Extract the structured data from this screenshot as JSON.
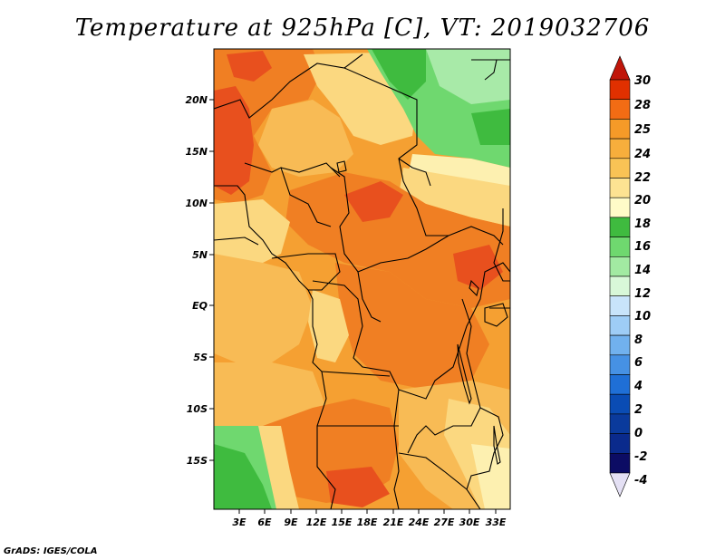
{
  "title": "Temperature at 925hPa [C], VT: 2019032706",
  "footer": "GrADS: IGES/COLA",
  "map": {
    "lat_ticks": [
      "20N",
      "15N",
      "10N",
      "5N",
      "EQ",
      "5S",
      "10S",
      "15S"
    ],
    "lon_ticks": [
      "3E",
      "6E",
      "9E",
      "12E",
      "15E",
      "18E",
      "21E",
      "24E",
      "27E",
      "30E",
      "33E"
    ]
  },
  "colorbar": {
    "labels": [
      "30",
      "28",
      "25",
      "24",
      "22",
      "20",
      "18",
      "16",
      "14",
      "12",
      "10",
      "8",
      "6",
      "4",
      "2",
      "0",
      "-2",
      "-4"
    ],
    "colors": [
      "#a50000",
      "#e03000",
      "#f26c14",
      "#f59a28",
      "#f9c355",
      "#fde392",
      "#fffbc8",
      "#3fbb3f",
      "#6fd86f",
      "#a2eaa2",
      "#d8f8d8",
      "#c8e4fa",
      "#9ecdf6",
      "#71b1ee",
      "#4691e4",
      "#1f6fd6",
      "#0a4cb4",
      "#0a2a8c",
      "#0c0c64",
      "#e4e0f4"
    ]
  },
  "palette": {
    "hot": "#e8501e",
    "warm": "#f07f23",
    "orange": "#f5a032",
    "lightorange": "#f8bb55",
    "yellow": "#fbd880",
    "paleyellow": "#fdf0b0",
    "lightgreen": "#a8eaa8",
    "green": "#6fd86f",
    "darkgreen": "#3fbb3f"
  }
}
